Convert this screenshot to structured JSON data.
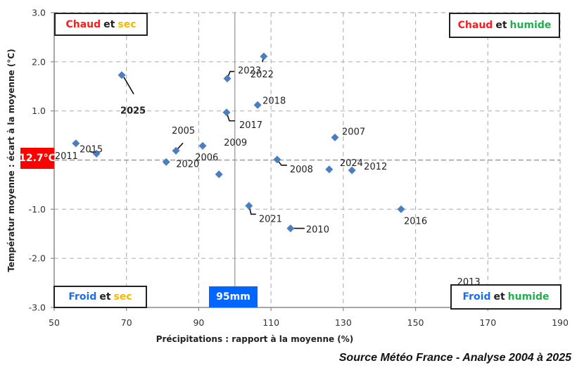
{
  "chart_data": {
    "type": "scatter",
    "title": "",
    "xlabel": "Précipitations : rapport à la moyenne (%)",
    "ylabel": "Températur moyenne : écart à la moyenne (°C)",
    "xlim": [
      50,
      190
    ],
    "ylim": [
      -3.0,
      3.0
    ],
    "x_ticks": [
      50,
      70,
      90,
      110,
      130,
      150,
      170,
      190
    ],
    "y_ticks": [
      -3.0,
      -2.0,
      -1.0,
      0,
      1.0,
      2.0,
      3.0
    ],
    "x_tick_labels": [
      "50",
      "70",
      "90",
      "110",
      "130",
      "150",
      "170",
      "190"
    ],
    "y_tick_labels": [
      "-3.0",
      "-2.0",
      "-1.0",
      "",
      "1.0",
      "2.0",
      "3.0"
    ],
    "grid": true,
    "reference_lines": {
      "x": 100,
      "y": 0
    },
    "marker": {
      "shape": "diamond",
      "color": "#4a7ec0"
    },
    "points": [
      {
        "label": "2025",
        "x": 68.7,
        "y": 1.73,
        "highlight": true,
        "label_color": "#ff0000"
      },
      {
        "label": "2011",
        "x": 56.0,
        "y": 0.34
      },
      {
        "label": "2015",
        "x": 61.7,
        "y": 0.13
      },
      {
        "label": "2020",
        "x": 81.0,
        "y": -0.04
      },
      {
        "label": "2005",
        "x": 83.7,
        "y": 0.19
      },
      {
        "label": "2009",
        "x": 91.1,
        "y": 0.29
      },
      {
        "label": "2006",
        "x": 95.6,
        "y": -0.29
      },
      {
        "label": "2023",
        "x": 97.9,
        "y": 1.66
      },
      {
        "label": "2022",
        "x": 108.0,
        "y": 2.11
      },
      {
        "label": "2017",
        "x": 97.7,
        "y": 0.97
      },
      {
        "label": "2018",
        "x": 106.3,
        "y": 1.12
      },
      {
        "label": "2008",
        "x": 111.7,
        "y": 0.01
      },
      {
        "label": "2007",
        "x": 127.7,
        "y": 0.46
      },
      {
        "label": "2024",
        "x": 126.1,
        "y": -0.19
      },
      {
        "label": "2012",
        "x": 132.4,
        "y": -0.21
      },
      {
        "label": "2021",
        "x": 103.9,
        "y": -0.93
      },
      {
        "label": "2010",
        "x": 115.4,
        "y": -1.39
      },
      {
        "label": "2016",
        "x": 146.0,
        "y": -1.0
      },
      {
        "label": "2013",
        "x": 165.0,
        "y": -2.7,
        "hidden_behind_box": true
      }
    ],
    "annotations": [
      {
        "text": "Chaud et sec",
        "position": "top-left"
      },
      {
        "text": "Chaud et humide",
        "position": "top-right"
      },
      {
        "text": "Froid et sec",
        "position": "bottom-left"
      },
      {
        "text": "Froid et humide",
        "position": "bottom-right"
      },
      {
        "text": "12.7°C",
        "position": "y-axis at 0"
      },
      {
        "text": "95mm",
        "position": "x-axis at 100"
      }
    ],
    "source": "Source Météo France - Analyse 2004 à 2025"
  },
  "quadrants": {
    "top_left": {
      "word1": "Chaud",
      "et": "et",
      "word2": "sec"
    },
    "top_right": {
      "word1": "Chaud",
      "et": "et",
      "word2": "humide"
    },
    "bottom_left": {
      "word1": "Froid",
      "et": "et",
      "word2": "sec"
    },
    "bottom_right": {
      "word1": "Froid",
      "et": "et",
      "word2": "humide"
    }
  },
  "reference": {
    "temperature_badge": "12.7°C",
    "precip_badge": "95mm"
  },
  "colors": {
    "hot": "#ff1a1a",
    "cold": "#1a6fe8",
    "dry": "#f5b800",
    "wet": "#1fb04c",
    "marker": "#4a7ec0",
    "temp_badge_bg": "#ff0000",
    "precip_badge_bg": "#0066ff",
    "highlight_label": "#ff0000"
  },
  "source_text": "Source Météo France - Analyse 2004 à 2025"
}
